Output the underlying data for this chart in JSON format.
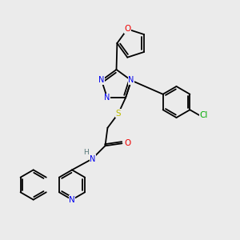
{
  "bg_color": "#ebebeb",
  "atom_colors": {
    "C": "#000000",
    "N": "#0000ee",
    "O": "#ee0000",
    "S": "#bbbb00",
    "Cl": "#00aa00",
    "H": "#557777"
  }
}
